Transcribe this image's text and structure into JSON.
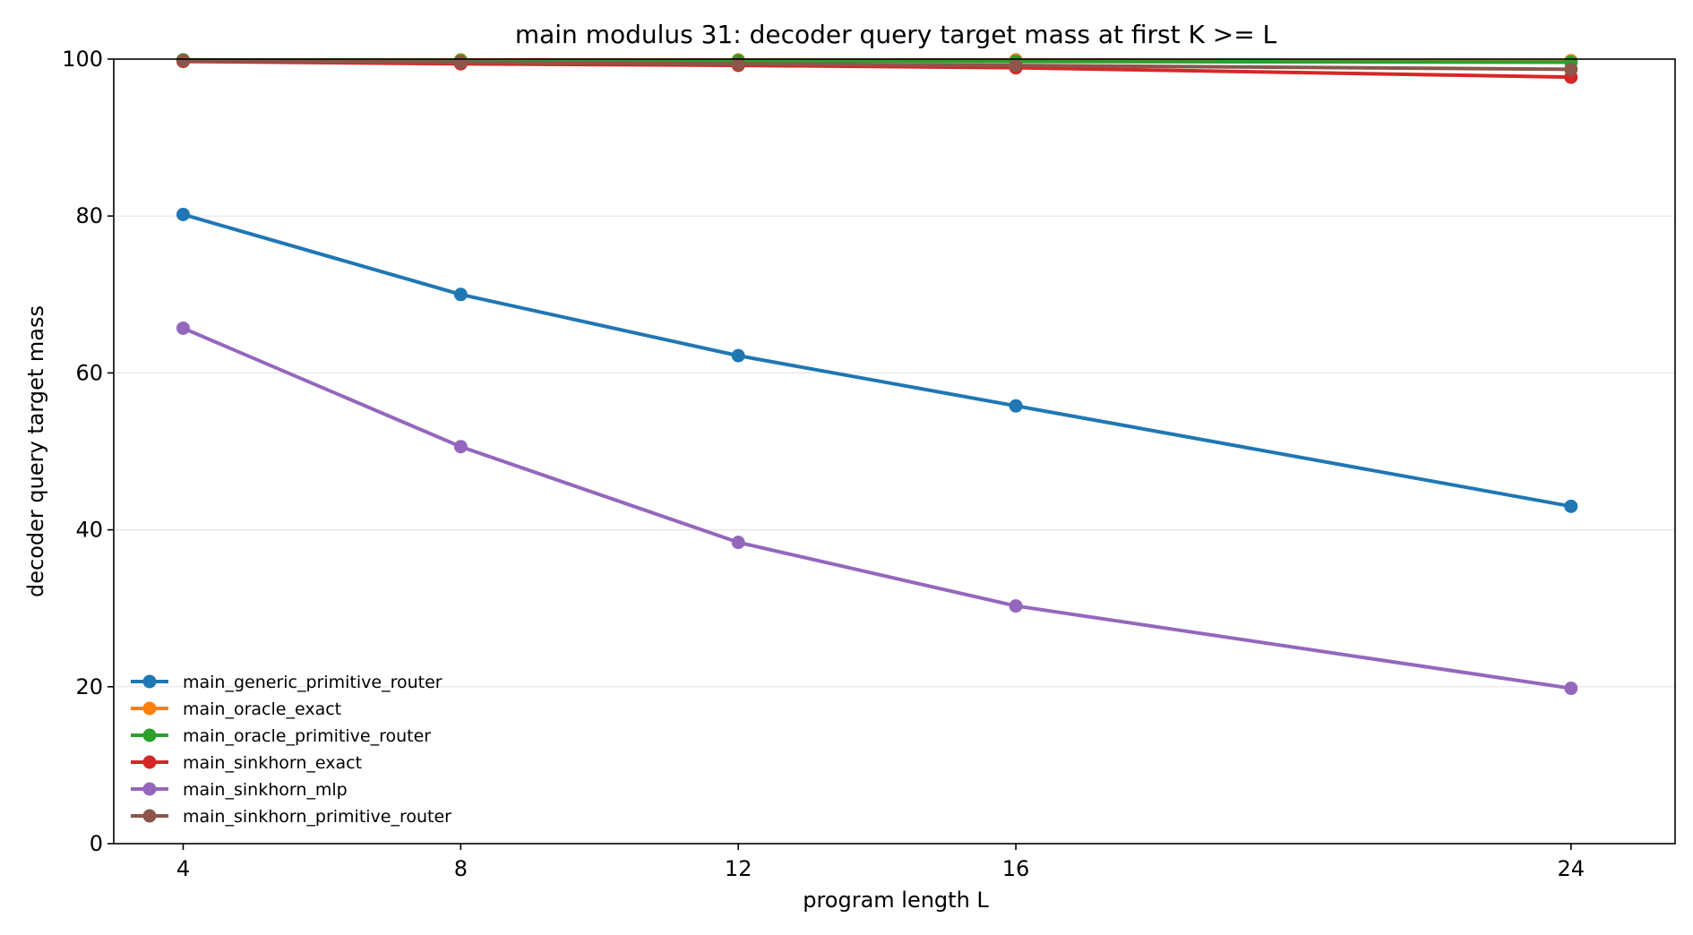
{
  "chart_data": {
    "type": "line",
    "title": "main modulus 31: decoder query target mass at first K >= L",
    "xlabel": "program length L",
    "ylabel": "decoder query target mass",
    "x": [
      4,
      8,
      12,
      16,
      24
    ],
    "xticks": [
      4,
      8,
      12,
      16,
      24
    ],
    "yticks": [
      0,
      20,
      40,
      60,
      80,
      100
    ],
    "xlim": [
      3,
      25.5
    ],
    "ylim": [
      0,
      100
    ],
    "grid": "y-only",
    "legend_position": "lower-left",
    "series": [
      {
        "name": "main_generic_primitive_router",
        "color": "#1f77b4",
        "values": [
          80.2,
          70.0,
          62.2,
          55.8,
          43.0
        ]
      },
      {
        "name": "main_oracle_exact",
        "color": "#ff7f0e",
        "values": [
          99.9,
          99.9,
          99.9,
          99.9,
          99.8
        ]
      },
      {
        "name": "main_oracle_primitive_router",
        "color": "#2ca02c",
        "values": [
          99.9,
          99.8,
          99.8,
          99.7,
          99.6
        ]
      },
      {
        "name": "main_sinkhorn_exact",
        "color": "#d62728",
        "values": [
          99.7,
          99.4,
          99.2,
          98.9,
          97.7
        ]
      },
      {
        "name": "main_sinkhorn_mlp",
        "color": "#9467bd",
        "values": [
          65.7,
          50.6,
          38.4,
          30.3,
          19.8
        ]
      },
      {
        "name": "main_sinkhorn_primitive_router",
        "color": "#8c564b",
        "values": [
          99.8,
          99.6,
          99.4,
          99.2,
          98.7
        ]
      }
    ]
  }
}
